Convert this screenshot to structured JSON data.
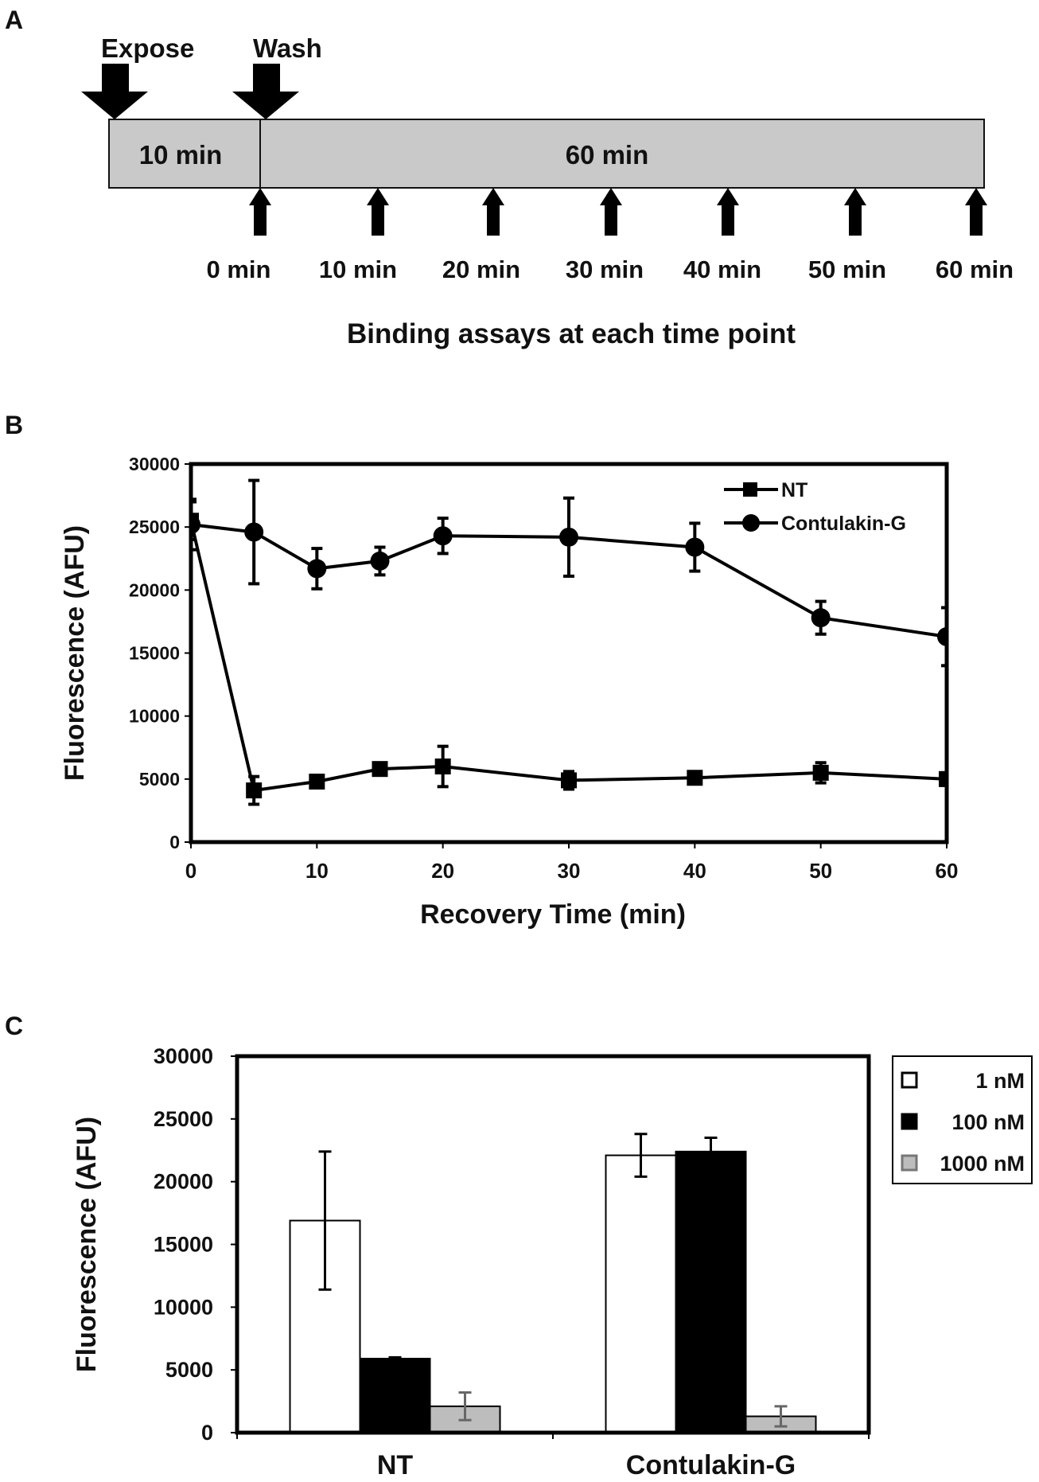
{
  "panels": {
    "a": {
      "label": "A"
    },
    "b": {
      "label": "B"
    },
    "c": {
      "label": "C"
    }
  },
  "timeline": {
    "expose_label": "Expose",
    "wash_label": "Wash",
    "exposure_duration": "10 min",
    "recovery_duration": "60 min",
    "timepoints": [
      "0 min",
      "10 min",
      "20 min",
      "30 min",
      "40 min",
      "50 min",
      "60 min"
    ],
    "caption": "Binding assays at each time point",
    "bar_color": "#c9c9c9"
  },
  "chart_data": [
    {
      "type": "line",
      "title": "",
      "xlabel": "Recovery Time (min)",
      "ylabel": "Fluorescence (AFU)",
      "xlim": [
        0,
        60
      ],
      "ylim": [
        0,
        30000
      ],
      "x_ticks": [
        0,
        10,
        20,
        30,
        40,
        50,
        60
      ],
      "y_ticks": [
        0,
        5000,
        10000,
        15000,
        20000,
        25000,
        30000
      ],
      "legend_position": "top-right",
      "series": [
        {
          "name": "NT",
          "marker": "square",
          "x": [
            0,
            5,
            10,
            15,
            20,
            30,
            40,
            50,
            60
          ],
          "values": [
            25500,
            4100,
            4800,
            5800,
            6000,
            4900,
            5100,
            5500,
            5000
          ],
          "errors": [
            1500,
            1100,
            400,
            400,
            1600,
            700,
            400,
            800,
            500
          ]
        },
        {
          "name": "Contulakin-G",
          "marker": "circle",
          "x": [
            0,
            5,
            10,
            15,
            20,
            30,
            40,
            50,
            60
          ],
          "values": [
            25200,
            24600,
            21700,
            22300,
            24300,
            24200,
            23400,
            17800,
            16300
          ],
          "errors": [
            2000,
            4100,
            1600,
            1100,
            1400,
            3100,
            1900,
            1300,
            2300
          ]
        }
      ]
    },
    {
      "type": "bar",
      "title": "",
      "xlabel": "",
      "ylabel": "Fluorescence (AFU)",
      "ylim": [
        0,
        30000
      ],
      "y_ticks": [
        0,
        5000,
        10000,
        15000,
        20000,
        25000,
        30000
      ],
      "categories": [
        "NT",
        "Contulakin-G"
      ],
      "legend_position": "right",
      "series": [
        {
          "name": "1 nM",
          "color": "#ffffff",
          "values": [
            16900,
            22100
          ],
          "errors": [
            5500,
            1700
          ]
        },
        {
          "name": "100 nM",
          "color": "#000000",
          "values": [
            5900,
            22400
          ],
          "errors": [
            100,
            1100
          ]
        },
        {
          "name": "1000 nM",
          "color": "#bdbdbd",
          "values": [
            2100,
            1300
          ],
          "errors": [
            1100,
            800
          ]
        }
      ]
    }
  ]
}
